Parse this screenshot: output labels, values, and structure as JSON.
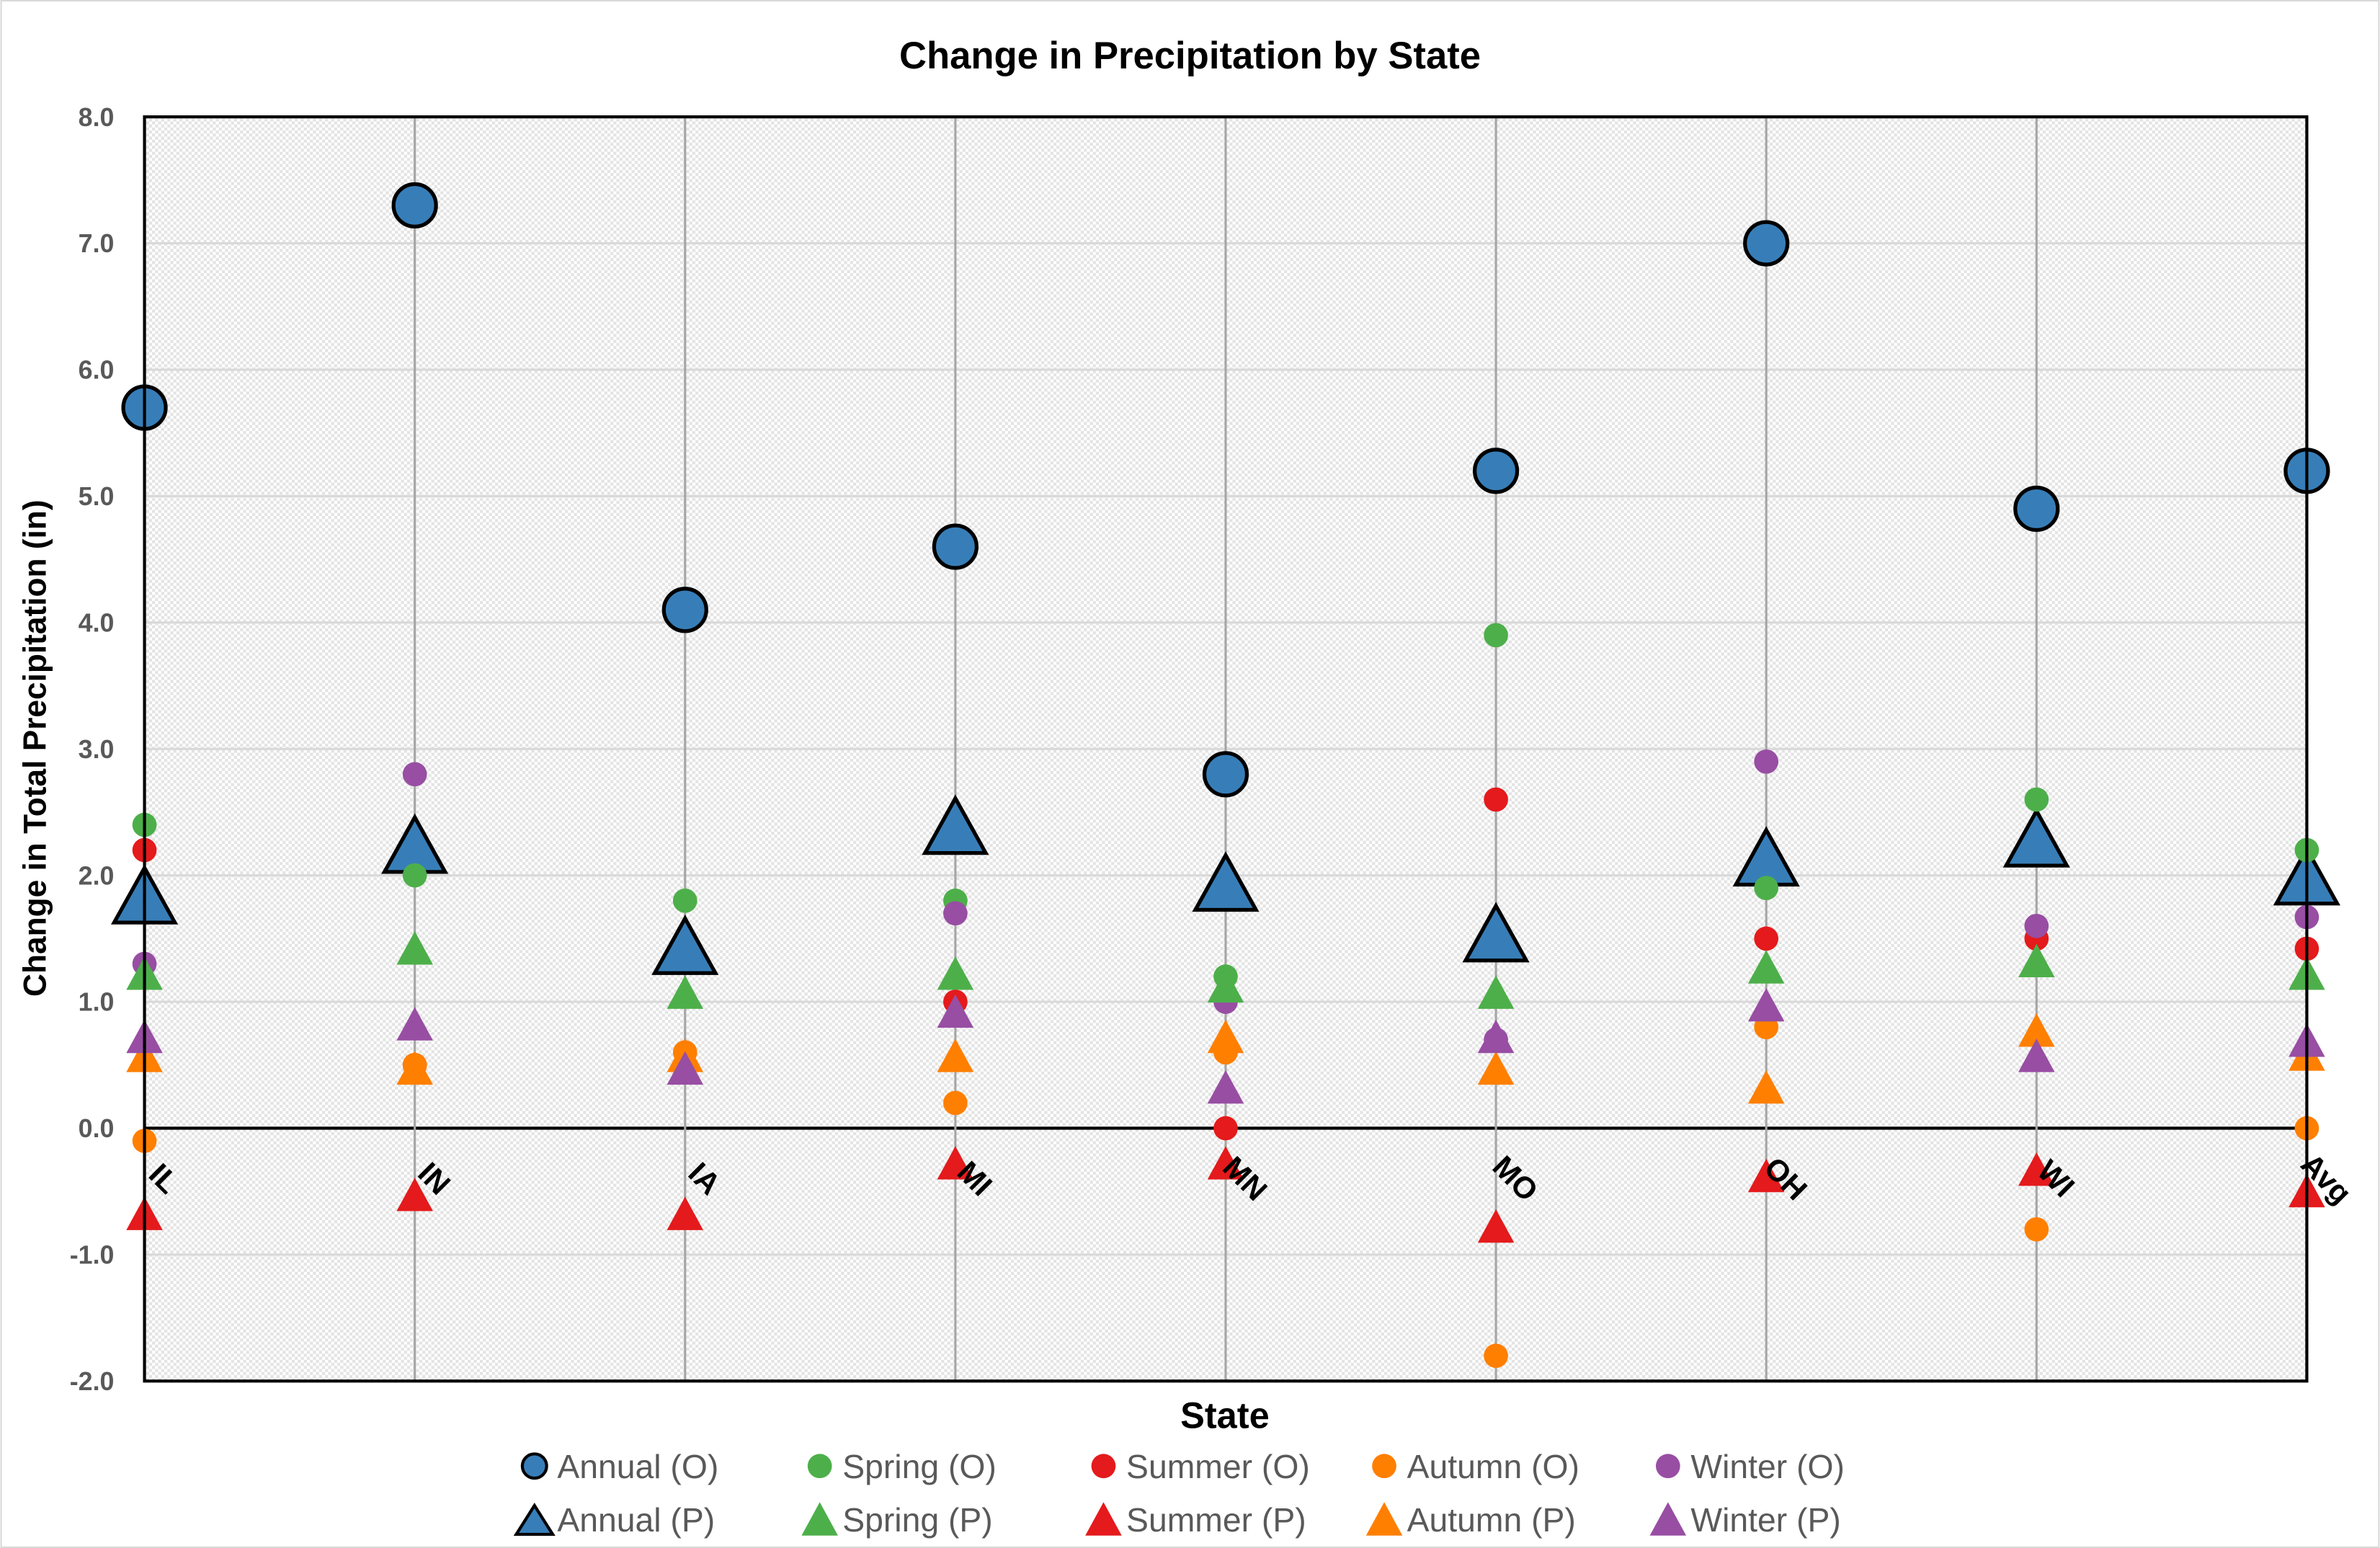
{
  "chart_data": {
    "type": "scatter",
    "title": "Change in Precipitation by State",
    "xlabel": "State",
    "ylabel": "Change in Total Precipitation (in)",
    "ylim": [
      -2,
      8
    ],
    "yticks": [
      "-2.0",
      "-1.0",
      "0.0",
      "1.0",
      "2.0",
      "3.0",
      "4.0",
      "5.0",
      "6.0",
      "7.0",
      "8.0"
    ],
    "grid": true,
    "legend_position": "bottom",
    "categories": [
      "IL",
      "IN",
      "IA",
      "MI",
      "MN",
      "MO",
      "OH",
      "WI",
      "Avg"
    ],
    "series": [
      {
        "name": "Annual (O)",
        "marker": "circle",
        "size": "large",
        "color": "#377EB8",
        "values": [
          5.7,
          7.3,
          4.1,
          4.6,
          2.8,
          5.2,
          7.0,
          4.9,
          5.2
        ]
      },
      {
        "name": "Spring (O)",
        "marker": "circle",
        "color": "#4DAF4A",
        "values": [
          2.4,
          2.0,
          1.8,
          1.8,
          1.2,
          3.9,
          1.9,
          2.6,
          2.2
        ]
      },
      {
        "name": "Summer (O)",
        "marker": "circle",
        "color": "#E41A1C",
        "values": [
          2.2,
          0.5,
          0.5,
          1.0,
          0.0,
          2.6,
          1.5,
          1.5,
          1.42
        ]
      },
      {
        "name": "Autumn (O)",
        "marker": "circle",
        "color": "#FF7F00",
        "values": [
          -0.1,
          0.5,
          0.6,
          0.2,
          0.6,
          -1.8,
          0.8,
          -0.8,
          0.0
        ]
      },
      {
        "name": "Winter (O)",
        "marker": "circle",
        "color": "#984EA3",
        "values": [
          1.3,
          2.8,
          0.5,
          1.7,
          1.0,
          0.7,
          2.9,
          1.6,
          1.67
        ]
      },
      {
        "name": "Annual (P)",
        "marker": "triangle",
        "size": "large",
        "color": "#377EB8",
        "values": [
          1.8,
          2.2,
          1.4,
          2.35,
          1.9,
          1.5,
          2.1,
          2.25,
          1.95
        ]
      },
      {
        "name": "Spring (P)",
        "marker": "triangle",
        "color": "#4DAF4A",
        "values": [
          1.2,
          1.4,
          1.05,
          1.2,
          1.1,
          1.05,
          1.25,
          1.3,
          1.2
        ]
      },
      {
        "name": "Summer (P)",
        "marker": "triangle",
        "color": "#E41A1C",
        "values": [
          -0.7,
          -0.55,
          -0.7,
          -0.3,
          -0.3,
          -0.8,
          -0.4,
          -0.35,
          -0.52
        ]
      },
      {
        "name": "Autumn (P)",
        "marker": "triangle",
        "color": "#FF7F00",
        "values": [
          0.55,
          0.45,
          0.55,
          0.55,
          0.7,
          0.45,
          0.3,
          0.75,
          0.56
        ]
      },
      {
        "name": "Winter (P)",
        "marker": "triangle",
        "color": "#984EA3",
        "values": [
          0.7,
          0.8,
          0.45,
          0.9,
          0.3,
          0.7,
          0.95,
          0.55,
          0.67
        ]
      }
    ]
  }
}
